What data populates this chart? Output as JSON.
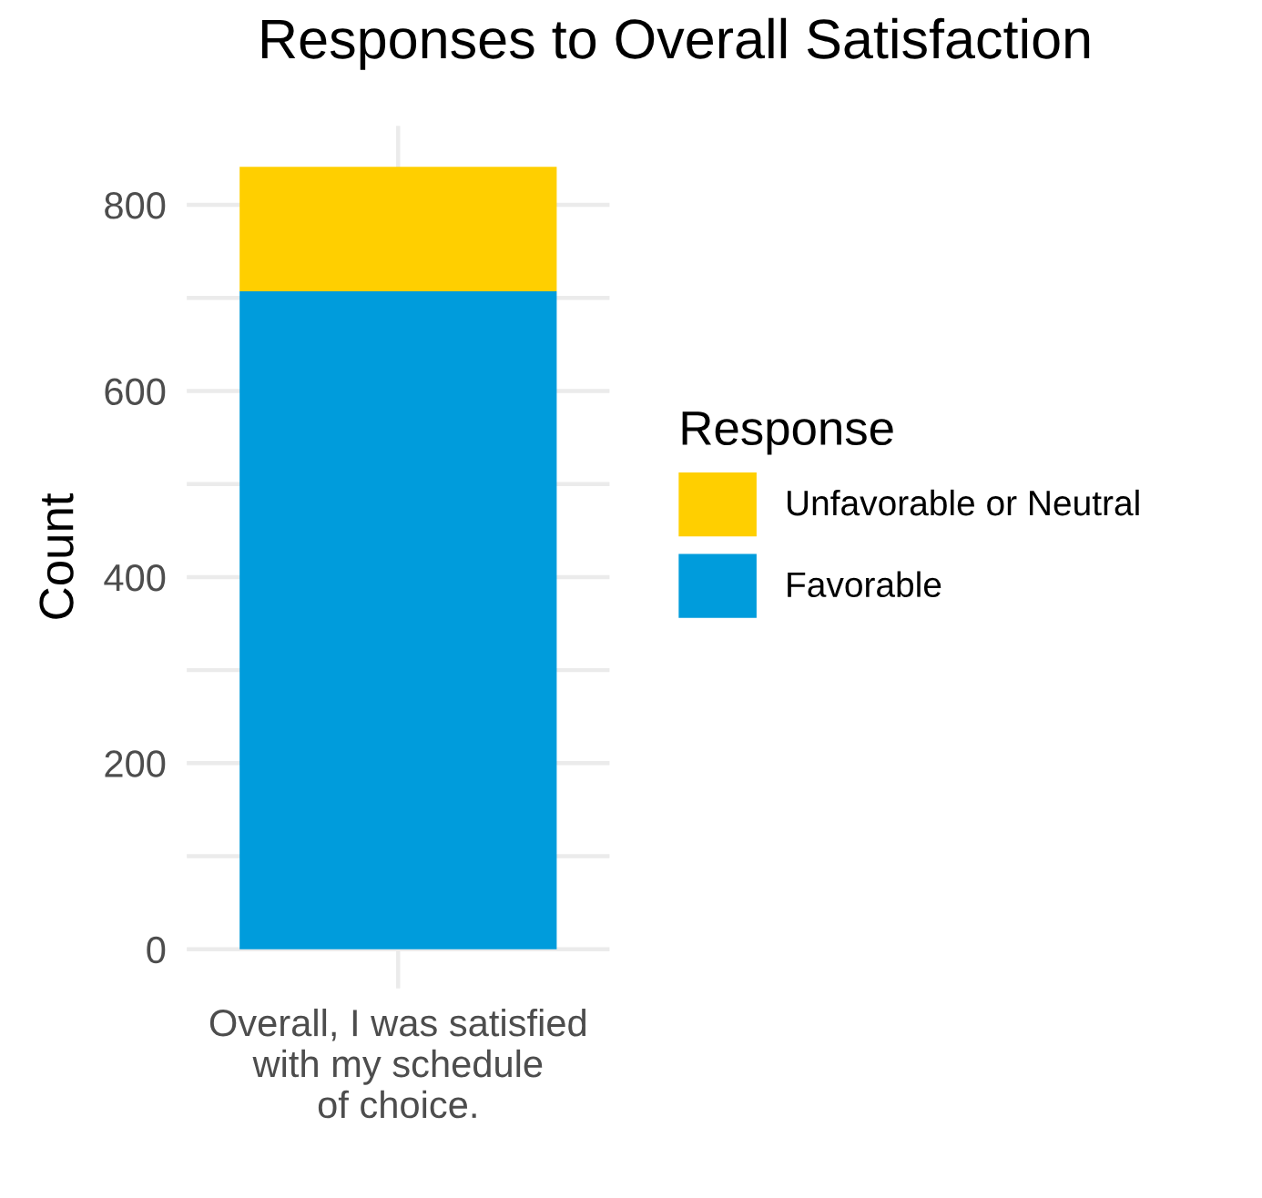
{
  "chart_data": {
    "type": "bar",
    "title": "Responses to Overall Satisfaction",
    "ylabel": "Count",
    "legend_title": "Response",
    "categories": [
      "Overall, I was satisfied\nwith my schedule\nof choice."
    ],
    "stacked": true,
    "series": [
      {
        "name": "Favorable",
        "color": "#009cdc",
        "values": [
          707
        ]
      },
      {
        "name": "Unfavorable or Neutral",
        "color": "#ffcf00",
        "values": [
          134
        ]
      }
    ],
    "ylim": [
      -42,
      885
    ],
    "yticks": [
      0,
      {
        "value": 100,
        "label": null
      },
      200,
      {
        "value": 300,
        "label": null
      },
      400,
      {
        "value": 500,
        "label": null
      },
      600,
      {
        "value": 700,
        "label": null
      },
      800
    ],
    "grid": true,
    "legend": "right"
  }
}
